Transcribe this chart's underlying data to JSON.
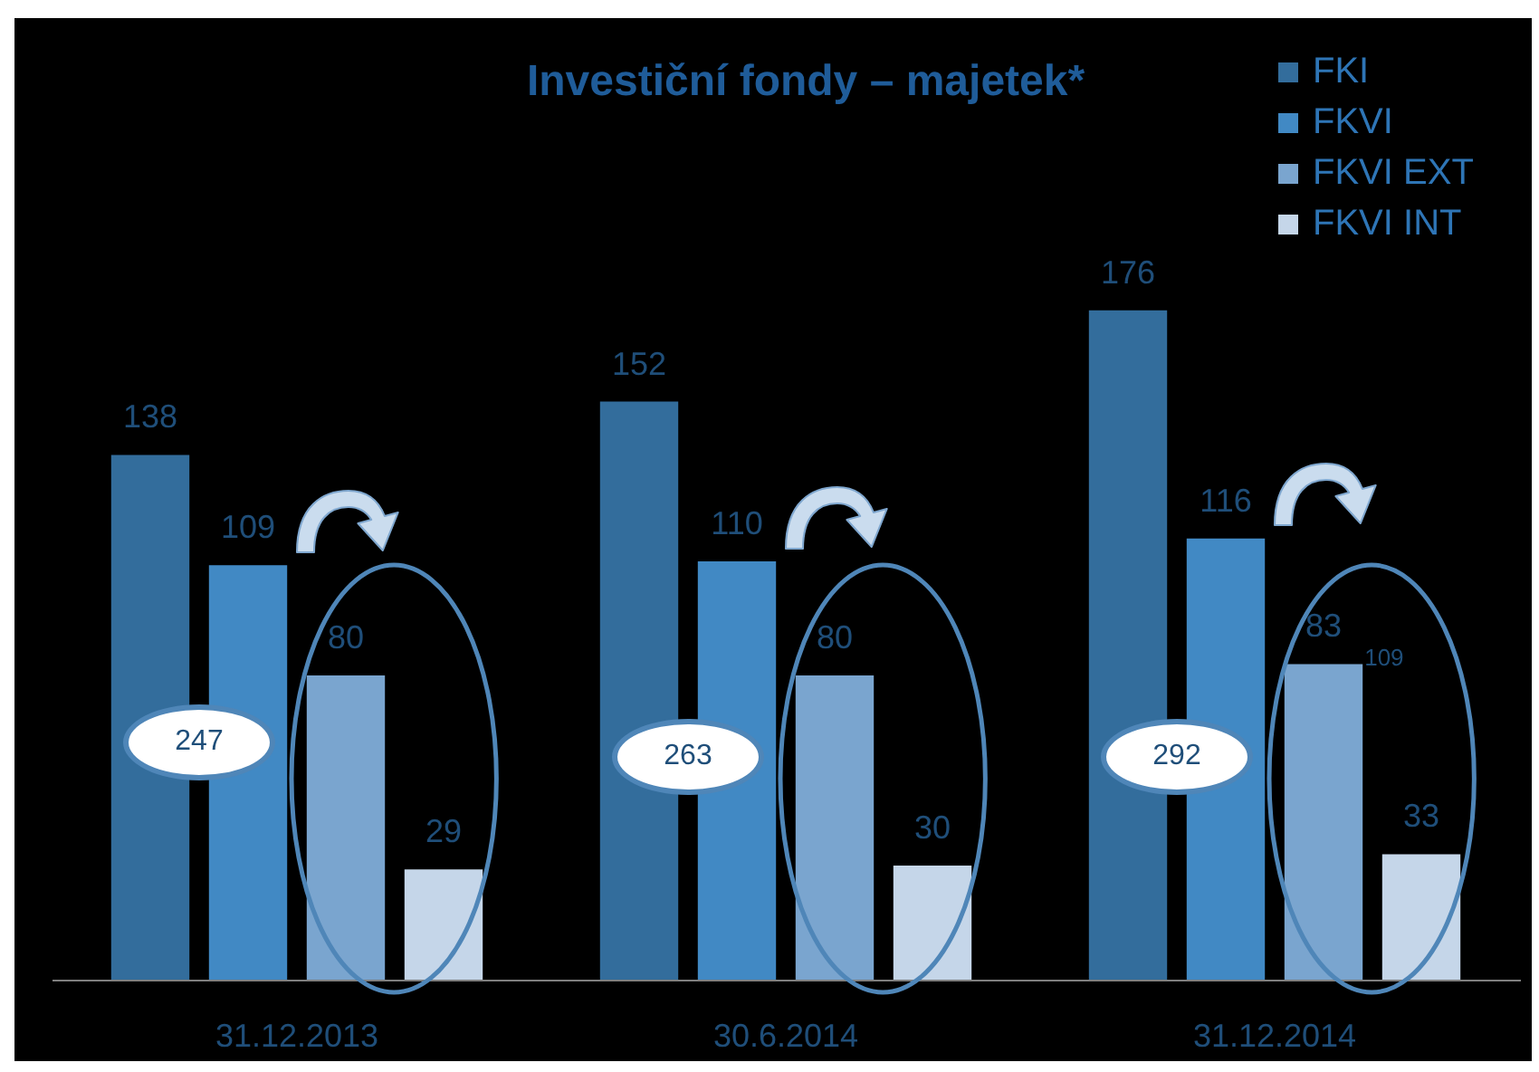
{
  "chart_data": {
    "type": "bar",
    "title": "Investiční fondy – majetek*",
    "categories": [
      "31.12.2013",
      "30.6.2014",
      "31.12.2014"
    ],
    "series": [
      {
        "name": "FKI",
        "color": "#336d9c",
        "values": [
          138,
          152,
          176
        ]
      },
      {
        "name": "FKVI",
        "color": "#4189c4",
        "values": [
          109,
          110,
          116
        ]
      },
      {
        "name": "FKVI EXT",
        "color": "#7aa5cf",
        "values": [
          80,
          80,
          83
        ]
      },
      {
        "name": "FKVI INT",
        "color": "#c5d6e9",
        "values": [
          29,
          30,
          33
        ]
      }
    ],
    "ylim": [
      0,
      200
    ],
    "tick_labels": "x",
    "grid": false,
    "data_labels": true,
    "legend": "top right",
    "annotations": [
      "247",
      "263",
      "292",
      "109"
    ]
  }
}
